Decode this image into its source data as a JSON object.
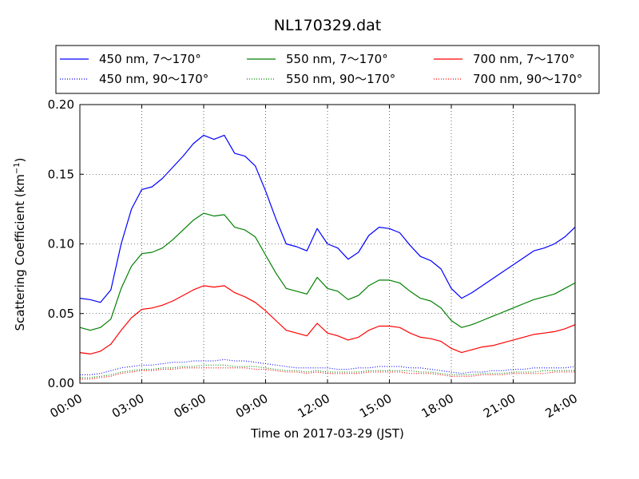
{
  "chart_data": {
    "type": "line",
    "title": "NL170329.dat",
    "xlabel": "Time on 2017-03-29 (JST)",
    "ylabel": "Scattering Coefficient (km",
    "ylabel_sup": "−1",
    "ylabel_close": ")",
    "xlim": [
      0,
      24
    ],
    "ylim": [
      0,
      0.2
    ],
    "grid": true,
    "legend_position": "top, above plot (3 columns)",
    "x_tick_labels": [
      "00:00",
      "03:00",
      "06:00",
      "09:00",
      "12:00",
      "15:00",
      "18:00",
      "21:00",
      "24:00"
    ],
    "y_tick_labels": [
      "0.00",
      "0.05",
      "0.10",
      "0.15",
      "0.20"
    ],
    "x_ticks": [
      0,
      3,
      6,
      9,
      12,
      15,
      18,
      21,
      24
    ],
    "y_ticks": [
      0,
      0.05,
      0.1,
      0.15,
      0.2
    ],
    "x": [
      0,
      0.5,
      1,
      1.5,
      2,
      2.5,
      3,
      3.5,
      4,
      4.5,
      5,
      5.5,
      6,
      6.5,
      7,
      7.5,
      8,
      8.5,
      9,
      9.5,
      10,
      10.5,
      11,
      11.5,
      12,
      12.5,
      13,
      13.5,
      14,
      14.5,
      15,
      15.5,
      16,
      16.5,
      17,
      17.5,
      18,
      18.5,
      19,
      19.5,
      20,
      20.5,
      21,
      21.5,
      22,
      22.5,
      23,
      23.5,
      24
    ],
    "series": [
      {
        "name": "450 nm, 7～170°",
        "color": "#0000ff",
        "style": "solid",
        "values": [
          0.061,
          0.06,
          0.058,
          0.067,
          0.1,
          0.125,
          0.139,
          0.141,
          0.147,
          0.155,
          0.163,
          0.172,
          0.178,
          0.175,
          0.178,
          0.165,
          0.163,
          0.156,
          0.138,
          0.118,
          0.1,
          0.098,
          0.095,
          0.111,
          0.1,
          0.097,
          0.089,
          0.094,
          0.106,
          0.112,
          0.111,
          0.108,
          0.099,
          0.091,
          0.088,
          0.082,
          0.068,
          0.061,
          0.065,
          0.07,
          0.075,
          0.08,
          0.085,
          0.09,
          0.095,
          0.097,
          0.1,
          0.105,
          0.112
        ]
      },
      {
        "name": "450 nm, 90～170°",
        "color": "#0000ff",
        "style": "dotted",
        "values": [
          0.006,
          0.006,
          0.007,
          0.009,
          0.011,
          0.012,
          0.013,
          0.013,
          0.014,
          0.015,
          0.015,
          0.016,
          0.016,
          0.016,
          0.017,
          0.016,
          0.016,
          0.015,
          0.014,
          0.013,
          0.012,
          0.011,
          0.011,
          0.011,
          0.011,
          0.01,
          0.01,
          0.011,
          0.011,
          0.012,
          0.012,
          0.012,
          0.011,
          0.011,
          0.01,
          0.009,
          0.008,
          0.007,
          0.008,
          0.008,
          0.009,
          0.009,
          0.01,
          0.01,
          0.011,
          0.011,
          0.011,
          0.011,
          0.012
        ]
      },
      {
        "name": "550 nm, 7～170°",
        "color": "#008000",
        "style": "solid",
        "values": [
          0.04,
          0.038,
          0.04,
          0.046,
          0.068,
          0.084,
          0.093,
          0.094,
          0.097,
          0.103,
          0.11,
          0.117,
          0.122,
          0.12,
          0.121,
          0.112,
          0.11,
          0.105,
          0.092,
          0.079,
          0.068,
          0.066,
          0.064,
          0.076,
          0.068,
          0.066,
          0.06,
          0.063,
          0.07,
          0.074,
          0.074,
          0.072,
          0.066,
          0.061,
          0.059,
          0.054,
          0.045,
          0.04,
          0.042,
          0.045,
          0.048,
          0.051,
          0.054,
          0.057,
          0.06,
          0.062,
          0.064,
          0.068,
          0.072
        ]
      },
      {
        "name": "550 nm, 90～170°",
        "color": "#008000",
        "style": "dotted",
        "values": [
          0.004,
          0.004,
          0.005,
          0.006,
          0.008,
          0.009,
          0.01,
          0.01,
          0.011,
          0.011,
          0.012,
          0.012,
          0.013,
          0.013,
          0.013,
          0.012,
          0.012,
          0.012,
          0.011,
          0.01,
          0.009,
          0.009,
          0.008,
          0.009,
          0.008,
          0.008,
          0.008,
          0.008,
          0.009,
          0.009,
          0.009,
          0.009,
          0.009,
          0.008,
          0.008,
          0.007,
          0.006,
          0.006,
          0.006,
          0.007,
          0.007,
          0.007,
          0.008,
          0.008,
          0.008,
          0.009,
          0.009,
          0.009,
          0.009
        ]
      },
      {
        "name": "700 nm, 7～170°",
        "color": "#ff0000",
        "style": "solid",
        "values": [
          0.022,
          0.021,
          0.023,
          0.028,
          0.038,
          0.047,
          0.053,
          0.054,
          0.056,
          0.059,
          0.063,
          0.067,
          0.07,
          0.069,
          0.07,
          0.065,
          0.062,
          0.058,
          0.052,
          0.045,
          0.038,
          0.036,
          0.034,
          0.043,
          0.036,
          0.034,
          0.031,
          0.033,
          0.038,
          0.041,
          0.041,
          0.04,
          0.036,
          0.033,
          0.032,
          0.03,
          0.025,
          0.022,
          0.024,
          0.026,
          0.027,
          0.029,
          0.031,
          0.033,
          0.035,
          0.036,
          0.037,
          0.039,
          0.042
        ]
      },
      {
        "name": "700 nm, 90～170°",
        "color": "#ff0000",
        "style": "dotted",
        "values": [
          0.003,
          0.003,
          0.004,
          0.005,
          0.007,
          0.008,
          0.009,
          0.009,
          0.01,
          0.01,
          0.011,
          0.011,
          0.011,
          0.011,
          0.011,
          0.011,
          0.011,
          0.01,
          0.01,
          0.009,
          0.008,
          0.008,
          0.007,
          0.008,
          0.007,
          0.007,
          0.007,
          0.007,
          0.008,
          0.008,
          0.008,
          0.008,
          0.007,
          0.007,
          0.007,
          0.006,
          0.005,
          0.005,
          0.005,
          0.006,
          0.006,
          0.006,
          0.007,
          0.007,
          0.007,
          0.007,
          0.008,
          0.008,
          0.008
        ]
      }
    ]
  }
}
